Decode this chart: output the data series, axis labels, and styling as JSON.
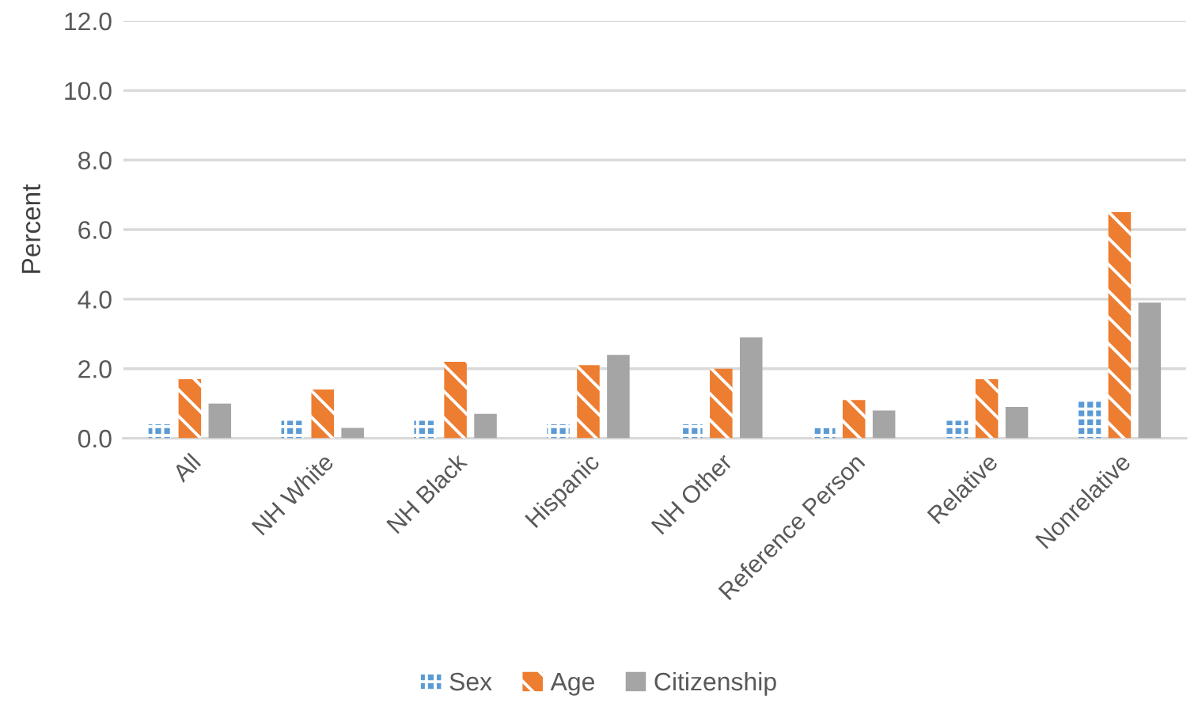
{
  "chart_data": {
    "type": "bar",
    "ylabel": "Percent",
    "categories": [
      "All",
      "NH White",
      "NH Black",
      "Hispanic",
      "NH Other",
      "Reference Person",
      "Relative",
      "Nonrelative"
    ],
    "series": [
      {
        "name": "Sex",
        "color": "#5b9bd5",
        "values": [
          0.4,
          0.5,
          0.5,
          0.4,
          0.4,
          0.3,
          0.5,
          1.1
        ]
      },
      {
        "name": "Age",
        "color": "#ed7d31",
        "values": [
          1.7,
          1.4,
          2.2,
          2.1,
          2.0,
          1.1,
          1.7,
          6.5
        ]
      },
      {
        "name": "Citizenship",
        "color": "#a5a5a5",
        "values": [
          1.0,
          0.3,
          0.7,
          2.4,
          2.9,
          0.8,
          0.9,
          3.9
        ]
      }
    ],
    "ylim": [
      0,
      12
    ],
    "yticks": [
      {
        "value": 0,
        "label": "0.0"
      },
      {
        "value": 2,
        "label": "2.0"
      },
      {
        "value": 4,
        "label": "4.0"
      },
      {
        "value": 6,
        "label": "6.0"
      },
      {
        "value": 8,
        "label": "8.0"
      },
      {
        "value": 10,
        "label": "10.0"
      },
      {
        "value": 12,
        "label": "12.0"
      }
    ],
    "grid": "y",
    "legend": "bottom"
  }
}
